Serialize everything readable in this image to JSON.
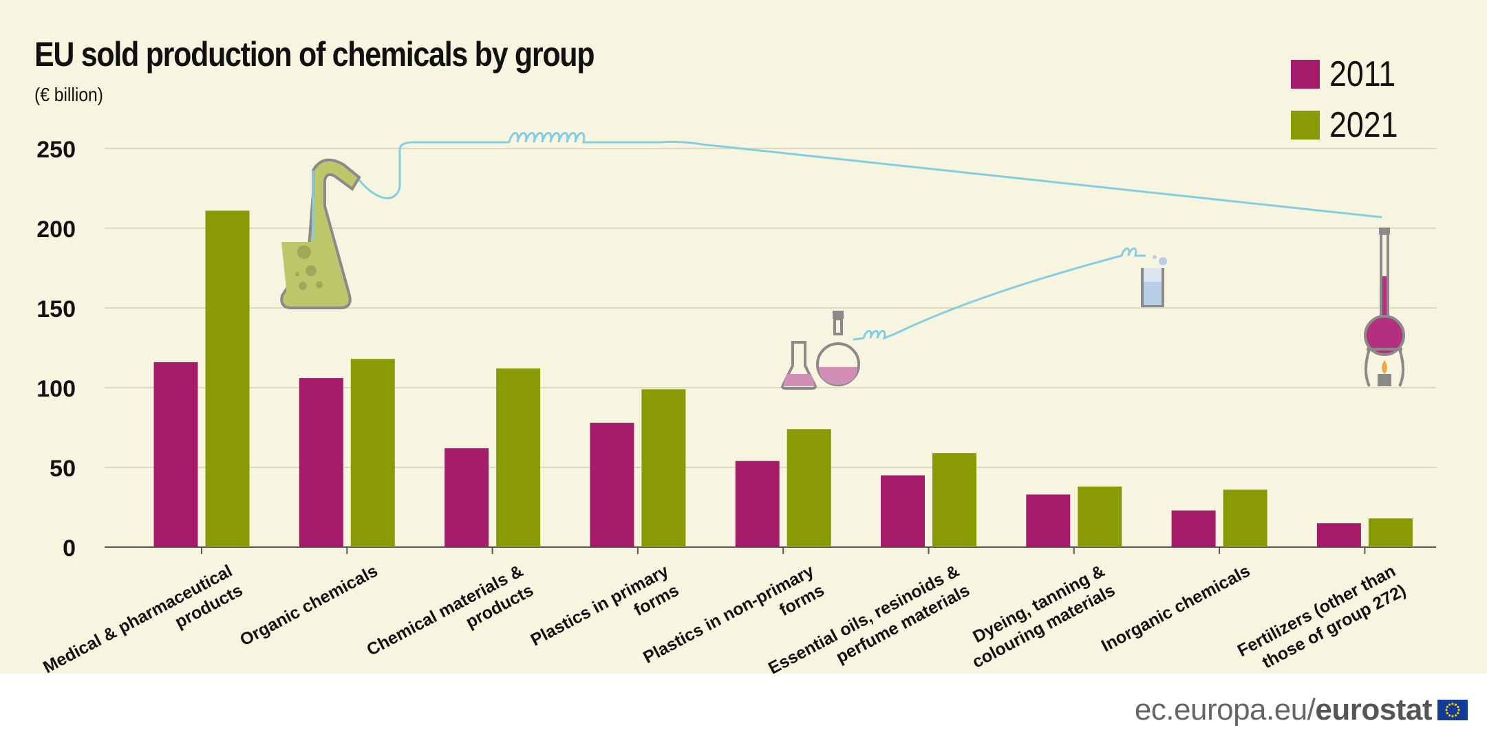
{
  "title": "EU sold production of chemicals by group",
  "subtitle": "(€ billion)",
  "legend": [
    {
      "label": "2011",
      "color": "#a51c6a"
    },
    {
      "label": "2021",
      "color": "#8a9a05"
    }
  ],
  "footer": {
    "domain": "ec.europa.eu/",
    "brand": "eurostat"
  },
  "colors": {
    "grid": "#ded9c0",
    "axis": "#555555",
    "tube": "#85cde3",
    "glass": "#8a8a8a"
  },
  "chart_data": {
    "type": "bar",
    "title": "EU sold production of chemicals by group",
    "ylabel": "",
    "xlabel": "",
    "ylim": [
      0,
      250
    ],
    "yticks": [
      0,
      50,
      100,
      150,
      200,
      250
    ],
    "grid": true,
    "legend_position": "top-right",
    "categories": [
      "Medical & pharmaceutical products",
      "Organic chemicals",
      "Chemical materials & products",
      "Plastics in primary forms",
      "Plastics in non-primary forms",
      "Essential oils, resinoids & perfume materials",
      "Dyeing, tanning & colouring materials",
      "Inorganic chemicals",
      "Fertilizers (other than those of group 272)"
    ],
    "category_label_lines": [
      [
        "Medical & pharmaceutical",
        "products"
      ],
      [
        "Organic chemicals"
      ],
      [
        "Chemical materials &",
        "products"
      ],
      [
        "Plastics in primary",
        "forms"
      ],
      [
        "Plastics in non-primary",
        "forms"
      ],
      [
        "Essential oils, resinoids &",
        "perfume materials"
      ],
      [
        "Dyeing, tanning &",
        "colouring materials"
      ],
      [
        "Inorganic chemicals"
      ],
      [
        "Fertilizers (other than",
        "those of group 272)"
      ]
    ],
    "series": [
      {
        "name": "2011",
        "color": "#a51c6a",
        "values": [
          116,
          106,
          62,
          78,
          54,
          45,
          33,
          23,
          15
        ]
      },
      {
        "name": "2021",
        "color": "#8a9a05",
        "values": [
          211,
          118,
          112,
          99,
          74,
          59,
          38,
          36,
          18
        ]
      }
    ]
  }
}
